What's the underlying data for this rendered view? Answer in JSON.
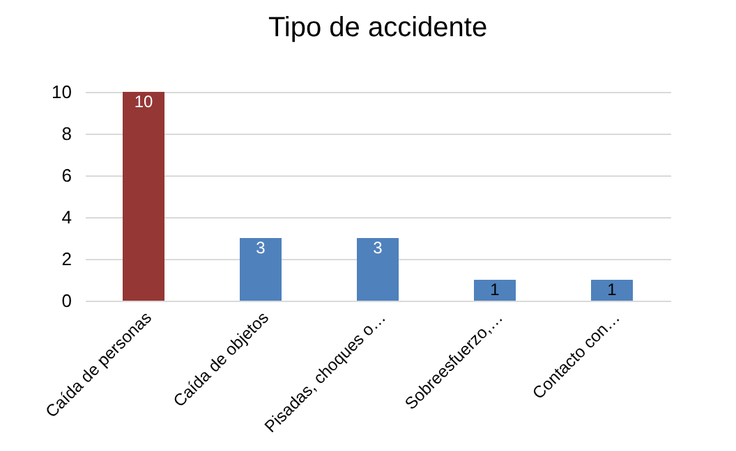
{
  "chart_data": {
    "type": "bar",
    "title": "Tipo de accidente",
    "categories": [
      "Caída de personas",
      "Caída de objetos",
      "Pisadas, choques o…",
      "Sobreesfuerzo,…",
      "Contacto con…"
    ],
    "values": [
      10,
      3,
      3,
      1,
      1
    ],
    "colors": [
      "#953735",
      "#4f81bd",
      "#4f81bd",
      "#4f81bd",
      "#4f81bd"
    ],
    "ylim": [
      0,
      10
    ],
    "yticks": [
      0,
      2,
      4,
      6,
      8,
      10
    ],
    "grid": "y",
    "data_labels": true
  }
}
